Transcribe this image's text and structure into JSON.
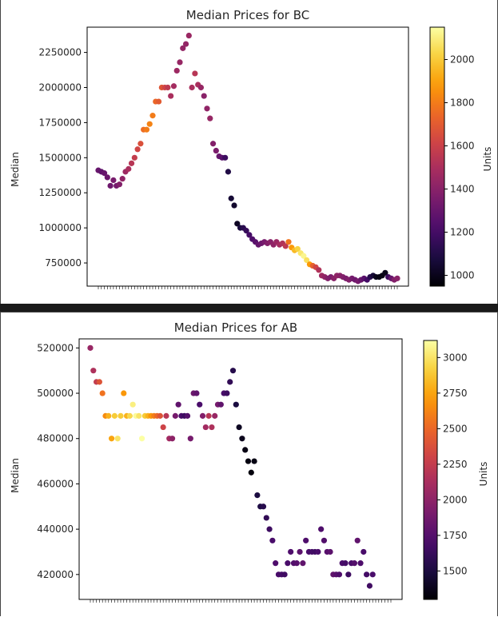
{
  "chart_data": [
    {
      "type": "scatter",
      "title": "Median Prices for BC",
      "xlabel": "",
      "ylabel": "Median",
      "colorbar_label": "Units",
      "colormap": "inferno",
      "color_range": [
        950,
        2150
      ],
      "ylim": [
        585000,
        2430000
      ],
      "yticks": [
        750000,
        1000000,
        1250000,
        1500000,
        1750000,
        2000000,
        2250000
      ],
      "colorbar_ticks": [
        1000,
        1200,
        1400,
        1600,
        1800,
        2000
      ],
      "x_tick_count": 100,
      "grid": false,
      "points": [
        [
          1,
          1410000,
          1300
        ],
        [
          2,
          1400000,
          1280
        ],
        [
          3,
          1390000,
          1300
        ],
        [
          4,
          1360000,
          1310
        ],
        [
          5,
          1300000,
          1320
        ],
        [
          6,
          1340000,
          1350
        ],
        [
          7,
          1300000,
          1340
        ],
        [
          8,
          1310000,
          1380
        ],
        [
          9,
          1350000,
          1420
        ],
        [
          10,
          1400000,
          1460
        ],
        [
          11,
          1420000,
          1500
        ],
        [
          12,
          1460000,
          1540
        ],
        [
          13,
          1500000,
          1580
        ],
        [
          14,
          1560000,
          1620
        ],
        [
          15,
          1600000,
          1660
        ],
        [
          16,
          1700000,
          1760
        ],
        [
          17,
          1700000,
          1800
        ],
        [
          18,
          1740000,
          1820
        ],
        [
          19,
          1800000,
          1800
        ],
        [
          20,
          1900000,
          1740
        ],
        [
          21,
          1900000,
          1700
        ],
        [
          22,
          2000000,
          1680
        ],
        [
          23,
          2000000,
          1620
        ],
        [
          24,
          2000000,
          1560
        ],
        [
          25,
          1940000,
          1500
        ],
        [
          26,
          2010000,
          1480
        ],
        [
          27,
          2120000,
          1460
        ],
        [
          28,
          2180000,
          1440
        ],
        [
          29,
          2280000,
          1430
        ],
        [
          30,
          2310000,
          1430
        ],
        [
          31,
          2370000,
          1450
        ],
        [
          32,
          2000000,
          1500
        ],
        [
          33,
          2100000,
          1540
        ],
        [
          34,
          2020000,
          1500
        ],
        [
          35,
          2000000,
          1440
        ],
        [
          36,
          1940000,
          1400
        ],
        [
          37,
          1850000,
          1420
        ],
        [
          38,
          1780000,
          1440
        ],
        [
          39,
          1600000,
          1380
        ],
        [
          40,
          1550000,
          1360
        ],
        [
          41,
          1510000,
          1300
        ],
        [
          42,
          1500000,
          1260
        ],
        [
          43,
          1500000,
          1180
        ],
        [
          44,
          1400000,
          1100
        ],
        [
          45,
          1210000,
          1060
        ],
        [
          46,
          1160000,
          1040
        ],
        [
          47,
          1030000,
          1020
        ],
        [
          48,
          1000000,
          1080
        ],
        [
          49,
          1000000,
          1120
        ],
        [
          50,
          980000,
          1160
        ],
        [
          51,
          950000,
          1200
        ],
        [
          52,
          920000,
          1230
        ],
        [
          53,
          900000,
          1260
        ],
        [
          54,
          880000,
          1290
        ],
        [
          55,
          890000,
          1320
        ],
        [
          56,
          900000,
          1350
        ],
        [
          57,
          890000,
          1380
        ],
        [
          58,
          900000,
          1400
        ],
        [
          59,
          880000,
          1420
        ],
        [
          60,
          900000,
          1450
        ],
        [
          61,
          880000,
          1480
        ],
        [
          62,
          890000,
          1520
        ],
        [
          63,
          870000,
          1560
        ],
        [
          64,
          900000,
          1780
        ],
        [
          65,
          860000,
          1880
        ],
        [
          66,
          840000,
          1960
        ],
        [
          67,
          850000,
          2020
        ],
        [
          68,
          820000,
          2080
        ],
        [
          69,
          800000,
          2120
        ],
        [
          70,
          770000,
          2060
        ],
        [
          71,
          740000,
          1880
        ],
        [
          72,
          730000,
          1720
        ],
        [
          73,
          720000,
          1620
        ],
        [
          74,
          700000,
          1520
        ],
        [
          75,
          660000,
          1460
        ],
        [
          76,
          650000,
          1420
        ],
        [
          77,
          640000,
          1380
        ],
        [
          78,
          650000,
          1360
        ],
        [
          79,
          640000,
          1400
        ],
        [
          80,
          660000,
          1420
        ],
        [
          81,
          660000,
          1400
        ],
        [
          82,
          650000,
          1380
        ],
        [
          83,
          640000,
          1360
        ],
        [
          84,
          630000,
          1380
        ],
        [
          85,
          640000,
          1340
        ],
        [
          86,
          630000,
          1320
        ],
        [
          87,
          620000,
          1350
        ],
        [
          88,
          630000,
          1300
        ],
        [
          89,
          640000,
          1260
        ],
        [
          90,
          630000,
          1200
        ],
        [
          91,
          650000,
          1120
        ],
        [
          92,
          660000,
          1060
        ],
        [
          93,
          650000,
          1000
        ],
        [
          94,
          650000,
          980
        ],
        [
          95,
          660000,
          990
        ],
        [
          96,
          680000,
          1000
        ],
        [
          97,
          650000,
          1180
        ],
        [
          98,
          640000,
          1300
        ],
        [
          99,
          630000,
          1380
        ],
        [
          100,
          640000,
          1400
        ]
      ]
    },
    {
      "type": "scatter",
      "title": "Median Prices for AB",
      "xlabel": "",
      "ylabel": "Median",
      "colorbar_label": "Units",
      "colormap": "inferno",
      "color_range": [
        1300,
        3120
      ],
      "ylim": [
        409000,
        524000
      ],
      "yticks": [
        420000,
        440000,
        460000,
        480000,
        500000,
        520000
      ],
      "colorbar_ticks": [
        1500,
        1750,
        2000,
        2250,
        2500,
        2750,
        3000
      ],
      "x_tick_count": 100,
      "grid": false,
      "points": [
        [
          1,
          520000,
          2050
        ],
        [
          2,
          510000,
          2150
        ],
        [
          3,
          505000,
          2250
        ],
        [
          4,
          505000,
          2400
        ],
        [
          5,
          500000,
          2550
        ],
        [
          6,
          490000,
          2650
        ],
        [
          7,
          490000,
          2800
        ],
        [
          8,
          480000,
          2750
        ],
        [
          9,
          490000,
          2900
        ],
        [
          10,
          480000,
          3000
        ],
        [
          11,
          490000,
          2900
        ],
        [
          12,
          500000,
          2700
        ],
        [
          13,
          490000,
          2800
        ],
        [
          14,
          490000,
          2950
        ],
        [
          15,
          495000,
          3050
        ],
        [
          16,
          490000,
          3100
        ],
        [
          17,
          490000,
          3000
        ],
        [
          18,
          480000,
          3120
        ],
        [
          19,
          490000,
          2900
        ],
        [
          20,
          490000,
          2800
        ],
        [
          21,
          490000,
          2700
        ],
        [
          22,
          490000,
          2600
        ],
        [
          23,
          490000,
          2500
        ],
        [
          24,
          490000,
          2400
        ],
        [
          25,
          485000,
          2300
        ],
        [
          26,
          490000,
          2200
        ],
        [
          27,
          480000,
          2100
        ],
        [
          28,
          480000,
          2000
        ],
        [
          29,
          490000,
          1900
        ],
        [
          30,
          495000,
          1800
        ],
        [
          31,
          490000,
          1700
        ],
        [
          32,
          490000,
          1650
        ],
        [
          33,
          490000,
          1750
        ],
        [
          34,
          480000,
          1900
        ],
        [
          35,
          500000,
          1850
        ],
        [
          36,
          500000,
          1800
        ],
        [
          37,
          495000,
          1700
        ],
        [
          38,
          490000,
          1950
        ],
        [
          39,
          485000,
          2100
        ],
        [
          40,
          490000,
          2200
        ],
        [
          41,
          485000,
          2150
        ],
        [
          42,
          490000,
          2050
        ],
        [
          43,
          495000,
          1900
        ],
        [
          44,
          495000,
          1800
        ],
        [
          45,
          500000,
          1700
        ],
        [
          46,
          500000,
          1650
        ],
        [
          47,
          505000,
          1600
        ],
        [
          48,
          510000,
          1550
        ],
        [
          49,
          495000,
          1500
        ],
        [
          50,
          485000,
          1400
        ],
        [
          51,
          480000,
          1380
        ],
        [
          52,
          475000,
          1350
        ],
        [
          53,
          470000,
          1340
        ],
        [
          54,
          465000,
          1330
        ],
        [
          55,
          470000,
          1350
        ],
        [
          56,
          455000,
          1500
        ],
        [
          57,
          450000,
          1520
        ],
        [
          58,
          450000,
          1560
        ],
        [
          59,
          445000,
          1600
        ],
        [
          60,
          440000,
          1650
        ],
        [
          61,
          435000,
          1700
        ],
        [
          62,
          425000,
          1720
        ],
        [
          63,
          420000,
          1700
        ],
        [
          64,
          420000,
          1680
        ],
        [
          65,
          420000,
          1660
        ],
        [
          66,
          425000,
          1700
        ],
        [
          67,
          430000,
          1720
        ],
        [
          68,
          425000,
          1740
        ],
        [
          69,
          425000,
          1760
        ],
        [
          70,
          430000,
          1780
        ],
        [
          71,
          425000,
          1800
        ],
        [
          72,
          435000,
          1720
        ],
        [
          73,
          430000,
          1700
        ],
        [
          74,
          430000,
          1680
        ],
        [
          75,
          430000,
          1660
        ],
        [
          76,
          430000,
          1700
        ],
        [
          77,
          440000,
          1720
        ],
        [
          78,
          435000,
          1740
        ],
        [
          79,
          430000,
          1760
        ],
        [
          80,
          430000,
          1780
        ],
        [
          81,
          420000,
          1800
        ],
        [
          82,
          420000,
          1760
        ],
        [
          83,
          420000,
          1720
        ],
        [
          84,
          425000,
          1700
        ],
        [
          85,
          425000,
          1680
        ],
        [
          86,
          420000,
          1650
        ],
        [
          87,
          425000,
          1700
        ],
        [
          88,
          425000,
          1750
        ],
        [
          89,
          435000,
          1800
        ],
        [
          90,
          425000,
          1720
        ],
        [
          91,
          430000,
          1700
        ],
        [
          92,
          420000,
          1680
        ],
        [
          93,
          415000,
          1660
        ],
        [
          94,
          420000,
          1700
        ]
      ]
    }
  ]
}
